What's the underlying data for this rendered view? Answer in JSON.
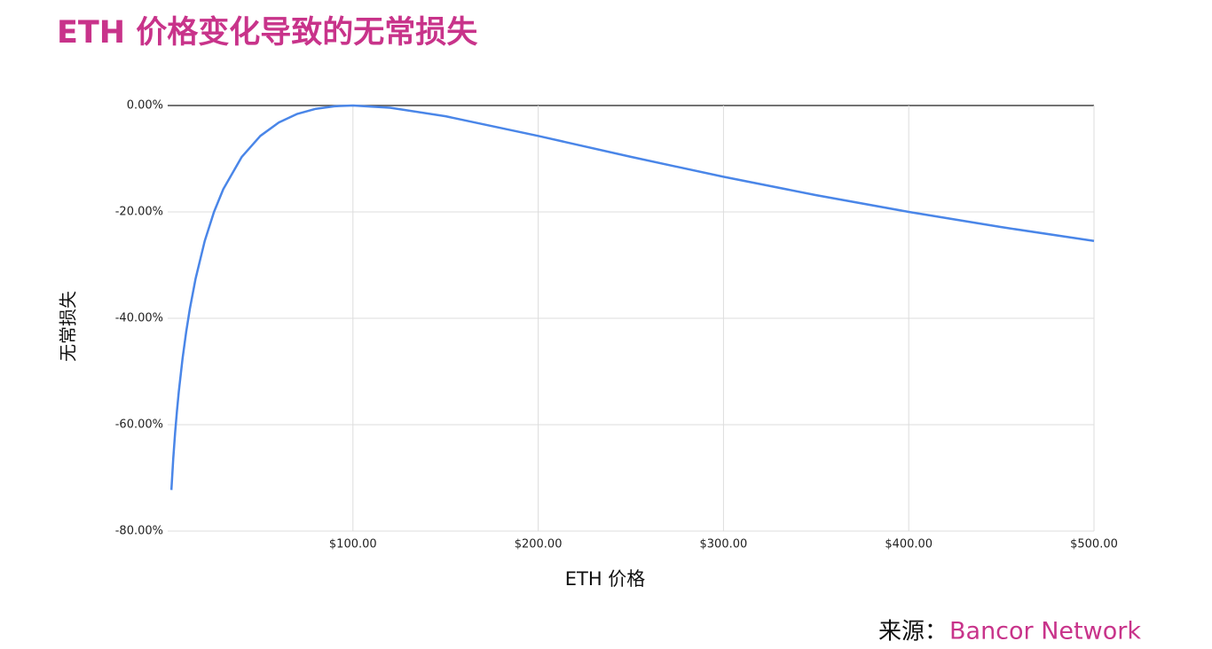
{
  "chart_data": {
    "type": "line",
    "title": "ETH 价格变化导致的无常损失",
    "x_label": "ETH 价格",
    "y_label": "无常损失",
    "source_label": "来源：",
    "source": "Bancor Network",
    "x": [
      2,
      3,
      4,
      5,
      6,
      8,
      10,
      12,
      15,
      20,
      25,
      30,
      40,
      50,
      60,
      70,
      80,
      90,
      100,
      120,
      150,
      200,
      250,
      300,
      350,
      400,
      450,
      500
    ],
    "series": [
      {
        "name": "无常损失",
        "color": "#4a86e8",
        "values": [
          -72.27,
          -66.37,
          -61.54,
          -57.41,
          -53.78,
          -47.62,
          -42.5,
          -38.14,
          -32.64,
          -25.46,
          -20,
          -15.73,
          -9.65,
          -5.72,
          -3.18,
          -1.57,
          -0.62,
          -0.14,
          0,
          -0.41,
          -2.02,
          -5.72,
          -9.65,
          -13.4,
          -16.85,
          -20,
          -22.86,
          -25.46
        ]
      }
    ],
    "xlim": [
      0,
      500
    ],
    "xticks": [
      {
        "value": 100,
        "label": "$100.00"
      },
      {
        "value": 200,
        "label": "$200.00"
      },
      {
        "value": 300,
        "label": "$300.00"
      },
      {
        "value": 400,
        "label": "$400.00"
      },
      {
        "value": 500,
        "label": "$500.00"
      }
    ],
    "ylim": [
      -80,
      0
    ],
    "yticks": [
      {
        "value": 0,
        "label": "0.00%"
      },
      {
        "value": -20,
        "label": "-20.00%"
      },
      {
        "value": -40,
        "label": "-40.00%"
      },
      {
        "value": -60,
        "label": "-60.00%"
      },
      {
        "value": -80,
        "label": "-80.00%"
      }
    ],
    "grid": true
  }
}
